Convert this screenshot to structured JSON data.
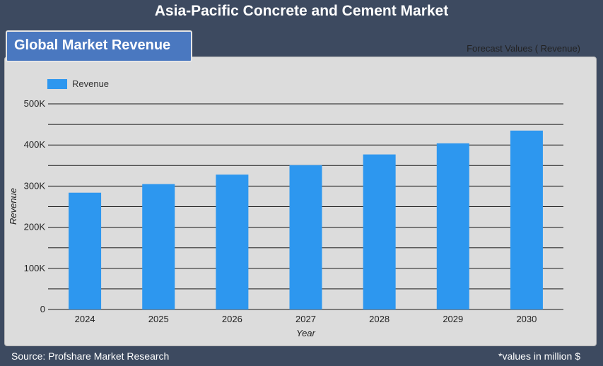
{
  "header": {
    "title": "Asia-Pacific Concrete and Cement Market"
  },
  "panel": {
    "tab_label": "Global Market Revenue",
    "forecast_label": "Forecast Values ( Revenue)"
  },
  "footer": {
    "source": "Source: Profshare Market Research",
    "note": "*values in million $"
  },
  "colors": {
    "bar": "#2d97ef",
    "background": "#3d4a60",
    "panel": "#dcdcdc",
    "tab": "#4a78c0"
  },
  "chart_data": {
    "type": "bar",
    "categories": [
      "2024",
      "2025",
      "2026",
      "2027",
      "2028",
      "2029",
      "2030"
    ],
    "series": [
      {
        "name": "Revenue",
        "values": [
          284,
          305,
          328,
          351,
          377,
          404,
          435
        ]
      }
    ],
    "xlabel": "Year",
    "ylabel": "Revenue",
    "ylim": [
      0,
      500
    ],
    "yticks": [
      0,
      100,
      200,
      300,
      400,
      500
    ],
    "ytick_labels": [
      "0",
      "100K",
      "200K",
      "300K",
      "400K",
      "500K"
    ],
    "grid": true,
    "legend": "top-left"
  }
}
